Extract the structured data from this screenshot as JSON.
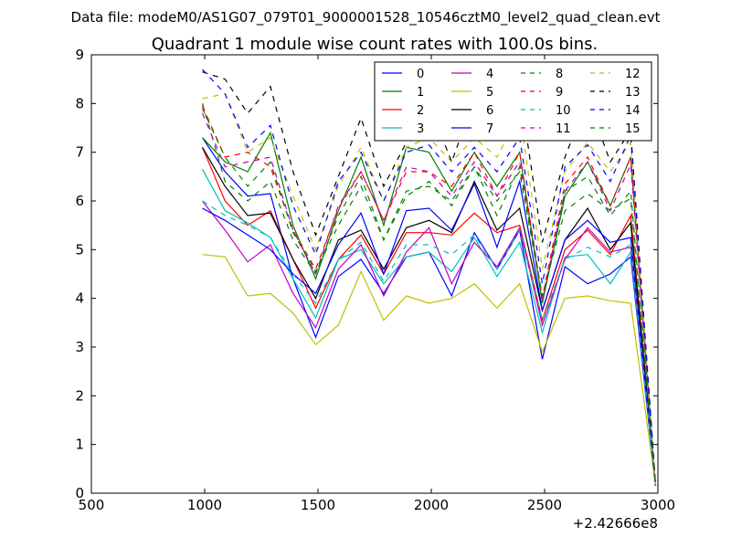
{
  "suptitle": "Data file: modeM0/AS1G07_079T01_9000001528_10546cztM0_level2_quad_clean.evt",
  "chart_data": {
    "type": "line",
    "title": "Quadrant 1 module wise count rates with 100.0s bins.",
    "xlabel": "",
    "ylabel": "",
    "x_offset_label": "+2.42666e8",
    "xlim": [
      500,
      3000
    ],
    "ylim": [
      0,
      9
    ],
    "xticks": [
      500,
      1000,
      1500,
      2000,
      2500,
      3000
    ],
    "yticks": [
      0,
      1,
      2,
      3,
      4,
      5,
      6,
      7,
      8,
      9
    ],
    "legend_position": "top-right",
    "x": [
      990,
      1090,
      1190,
      1290,
      1390,
      1490,
      1590,
      1690,
      1790,
      1890,
      1990,
      2090,
      2190,
      2290,
      2390,
      2490,
      2590,
      2690,
      2790,
      2880,
      2990
    ],
    "series": [
      {
        "name": "0",
        "color": "#0000ff",
        "dash": "solid",
        "values": [
          7.3,
          6.6,
          6.1,
          6.15,
          4.4,
          3.2,
          4.45,
          4.8,
          4.1,
          4.85,
          4.95,
          4.05,
          5.35,
          4.6,
          5.4,
          2.75,
          4.65,
          4.3,
          4.5,
          4.85,
          0.15
        ]
      },
      {
        "name": "1",
        "color": "#008000",
        "dash": "solid",
        "values": [
          7.3,
          6.8,
          6.6,
          7.4,
          5.5,
          4.4,
          5.8,
          6.9,
          5.5,
          7.1,
          7.0,
          6.2,
          7.0,
          6.3,
          7.0,
          3.9,
          6.1,
          6.8,
          5.9,
          6.9,
          0.15
        ]
      },
      {
        "name": "2",
        "color": "#ff0000",
        "dash": "solid",
        "values": [
          7.1,
          6.0,
          5.5,
          5.8,
          4.8,
          3.8,
          4.8,
          5.3,
          4.5,
          5.35,
          5.35,
          5.3,
          5.75,
          5.35,
          5.5,
          3.55,
          5.0,
          5.4,
          4.9,
          5.7,
          0.15
        ]
      },
      {
        "name": "3",
        "color": "#00bfbf",
        "dash": "solid",
        "values": [
          6.65,
          5.8,
          5.55,
          5.25,
          4.4,
          3.6,
          4.8,
          5.0,
          4.3,
          4.85,
          4.95,
          4.55,
          5.25,
          4.45,
          5.15,
          3.3,
          4.85,
          4.9,
          4.3,
          4.95,
          0.15
        ]
      },
      {
        "name": "4",
        "color": "#bf00bf",
        "dash": "solid",
        "values": [
          6.0,
          5.4,
          4.75,
          5.1,
          4.1,
          3.4,
          4.6,
          5.1,
          4.05,
          4.95,
          5.45,
          4.3,
          5.15,
          4.65,
          5.45,
          3.45,
          4.8,
          5.45,
          4.95,
          5.05,
          0.15
        ]
      },
      {
        "name": "5",
        "color": "#bfbf00",
        "dash": "solid",
        "values": [
          4.9,
          4.85,
          4.05,
          4.1,
          3.7,
          3.05,
          3.45,
          4.55,
          3.55,
          4.05,
          3.9,
          4.0,
          4.3,
          3.8,
          4.3,
          2.9,
          4.0,
          4.05,
          3.95,
          3.9,
          0.15
        ]
      },
      {
        "name": "6",
        "color": "#000000",
        "dash": "solid",
        "values": [
          7.1,
          6.3,
          5.7,
          5.75,
          4.8,
          4.0,
          5.2,
          5.4,
          4.6,
          5.45,
          5.6,
          5.35,
          6.4,
          5.4,
          5.85,
          3.75,
          5.2,
          5.85,
          5.0,
          5.55,
          0.15
        ]
      },
      {
        "name": "7",
        "color": "#0000ff",
        "dash": "solid",
        "values": [
          5.85,
          5.6,
          5.3,
          5.0,
          4.5,
          4.1,
          5.1,
          5.75,
          4.5,
          5.8,
          5.85,
          5.4,
          6.35,
          5.05,
          6.4,
          3.75,
          5.2,
          5.6,
          5.15,
          5.25,
          0.15
        ]
      },
      {
        "name": "8",
        "color": "#008000",
        "dash": "dashed",
        "values": [
          8.0,
          6.4,
          6.0,
          6.4,
          5.2,
          4.5,
          5.7,
          6.5,
          5.2,
          6.1,
          6.4,
          5.9,
          6.7,
          6.0,
          6.6,
          4.0,
          6.2,
          6.5,
          5.7,
          6.2,
          0.15
        ]
      },
      {
        "name": "9",
        "color": "#ff0000",
        "dash": "dashed",
        "values": [
          7.95,
          6.9,
          7.0,
          6.7,
          5.4,
          4.6,
          5.85,
          6.6,
          5.6,
          6.6,
          6.6,
          6.3,
          7.0,
          6.1,
          7.0,
          4.0,
          6.35,
          6.9,
          5.9,
          6.9,
          0.15
        ]
      },
      {
        "name": "10",
        "color": "#00bfbf",
        "dash": "dashed",
        "values": [
          6.0,
          5.7,
          5.5,
          5.25,
          4.5,
          3.9,
          4.8,
          5.15,
          4.35,
          5.1,
          5.1,
          4.9,
          5.3,
          4.6,
          5.4,
          3.55,
          4.8,
          5.05,
          4.85,
          5.1,
          0.15
        ]
      },
      {
        "name": "11",
        "color": "#bf00bf",
        "dash": "dashed",
        "values": [
          7.8,
          6.7,
          6.8,
          6.9,
          5.4,
          4.5,
          5.9,
          6.6,
          5.6,
          6.7,
          6.6,
          6.1,
          6.8,
          6.1,
          6.8,
          3.95,
          6.2,
          6.8,
          5.8,
          6.75,
          0.15
        ]
      },
      {
        "name": "12",
        "color": "#bfbf00",
        "dash": "dashed",
        "values": [
          8.1,
          8.2,
          7.0,
          7.3,
          6.1,
          5.0,
          6.3,
          7.1,
          6.0,
          7.1,
          7.3,
          6.8,
          7.3,
          6.9,
          7.8,
          4.6,
          6.6,
          7.2,
          6.6,
          7.2,
          0.15
        ]
      },
      {
        "name": "13",
        "color": "#000000",
        "dash": "dashed",
        "values": [
          8.65,
          8.5,
          7.8,
          8.35,
          6.6,
          5.3,
          6.5,
          7.7,
          6.3,
          7.2,
          8.0,
          6.8,
          8.1,
          7.4,
          8.3,
          5.15,
          6.9,
          8.1,
          6.8,
          7.45,
          0.15
        ]
      },
      {
        "name": "14",
        "color": "#0000ff",
        "dash": "dashed",
        "values": [
          8.7,
          8.2,
          7.1,
          7.55,
          5.9,
          4.9,
          6.4,
          7.0,
          6.0,
          7.0,
          7.15,
          6.6,
          7.1,
          6.6,
          7.3,
          4.3,
          6.7,
          7.15,
          6.4,
          7.35,
          0.15
        ]
      },
      {
        "name": "15",
        "color": "#008000",
        "dash": "dashed",
        "values": [
          7.9,
          6.9,
          6.3,
          6.8,
          5.35,
          4.55,
          5.5,
          6.3,
          5.2,
          6.2,
          6.3,
          6.0,
          6.7,
          5.7,
          6.7,
          4.05,
          5.8,
          6.15,
          5.8,
          6.05,
          0.15
        ]
      }
    ]
  }
}
